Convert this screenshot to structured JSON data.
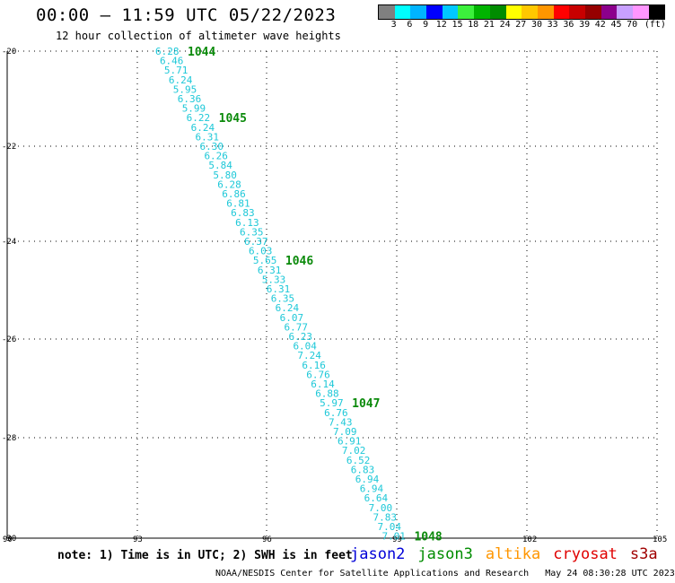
{
  "header": {
    "title": "00:00 — 11:59 UTC 05/22/2023",
    "subtitle": "12 hour collection of altimeter wave heights"
  },
  "colorbar": {
    "colors": [
      "#808080",
      "#00ffff",
      "#00b4ff",
      "#0000ff",
      "#00c8ff",
      "#3cf03c",
      "#00b400",
      "#008c00",
      "#ffff00",
      "#ffc800",
      "#ff9600",
      "#ff0000",
      "#c80000",
      "#960000",
      "#8c008c",
      "#c8a0ff",
      "#ff96ff",
      "#000000"
    ],
    "labels": [
      "3",
      "6",
      "9",
      "12",
      "15",
      "18",
      "21",
      "24",
      "27",
      "30",
      "33",
      "36",
      "39",
      "42",
      "45",
      "70",
      "(ft)"
    ]
  },
  "map": {
    "lon_ticks": [
      "90",
      "93",
      "96",
      "99",
      "102",
      "105"
    ],
    "lat_ticks": [
      "-20",
      "-22",
      "-24",
      "-26",
      "-28",
      "-30"
    ],
    "wave_heights": [
      "6.28",
      "6.46",
      "5.71",
      "6.24",
      "5.95",
      "6.36",
      "5.99",
      "6.22",
      "6.24",
      "6.31",
      "6.30",
      "6.26",
      "5.84",
      "5.80",
      "6.28",
      "6.86",
      "6.81",
      "6.83",
      "6.13",
      "6.35",
      "6.37",
      "6.03",
      "5.65",
      "6.31",
      "5.33",
      "6.31",
      "6.35",
      "6.24",
      "6.07",
      "6.77",
      "6.23",
      "6.04",
      "7.24",
      "6.16",
      "6.76",
      "6.14",
      "6.88",
      "5.97",
      "6.76",
      "7.43",
      "7.09",
      "6.91",
      "7.02",
      "6.52",
      "6.83",
      "6.94",
      "6.94",
      "6.64",
      "7.00",
      "7.83",
      "7.04",
      "7.01"
    ],
    "pass_labels": [
      {
        "text": "1044",
        "row": 0
      },
      {
        "text": "1045",
        "row": 7
      },
      {
        "text": "1046",
        "row": 22
      },
      {
        "text": "1047",
        "row": 37
      },
      {
        "text": "1048",
        "row": 51
      }
    ]
  },
  "legend": {
    "note": "note: 1) Time is in UTC; 2) SWH is in feet",
    "satellites": [
      {
        "name": "jason2",
        "color": "#0000d8"
      },
      {
        "name": "jason3",
        "color": "#008c00"
      },
      {
        "name": "altika",
        "color": "#ff9600"
      },
      {
        "name": "cryosat",
        "color": "#e00000"
      },
      {
        "name": "s3a",
        "color": "#a00000"
      }
    ]
  },
  "footer": {
    "credit": "NOAA/NESDIS Center for Satellite Applications and Research",
    "timestamp": "May 24 08:30:28 UTC 2023"
  }
}
